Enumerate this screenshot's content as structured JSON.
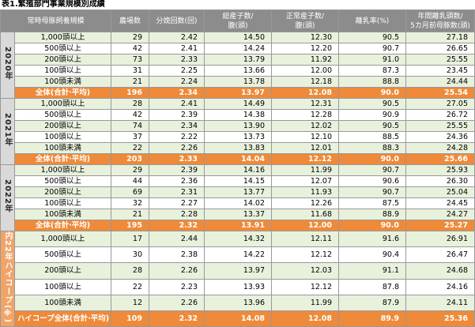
{
  "title": "表1.繁殖部門事業規模別成績",
  "table": {
    "header": [
      [
        "常時母豚飼養規模"
      ],
      [
        "農場数"
      ],
      [
        "分娩回数(回)"
      ],
      [
        "総産子数/",
        "腹(頭)"
      ],
      [
        "正常産子数/",
        "腹(頭)"
      ],
      [
        "離乳率(%)"
      ],
      [
        "年間離乳頭数/",
        "5カ月前母豚数(頭)"
      ]
    ],
    "groups": [
      {
        "label": "2020年",
        "rows": [
          [
            "1,000頭以上",
            "29",
            "2.42",
            "14.50",
            "12.30",
            "90.5",
            "27.18"
          ],
          [
            "500頭以上",
            "42",
            "2.41",
            "14.24",
            "12.20",
            "90.7",
            "26.65"
          ],
          [
            "200頭以上",
            "73",
            "2.33",
            "13.79",
            "11.92",
            "91.0",
            "25.55"
          ],
          [
            "100頭以上",
            "31",
            "2.25",
            "13.66",
            "12.00",
            "87.3",
            "23.45"
          ],
          [
            "100頭未満",
            "21",
            "2.24",
            "13.78",
            "12.18",
            "88.8",
            "24.44"
          ],
          [
            "全体(合計·平均)",
            "196",
            "2.34",
            "13.97",
            "12.08",
            "90.0",
            "25.54"
          ]
        ]
      },
      {
        "label": "2021年",
        "rows": [
          [
            "1,000頭以上",
            "28",
            "2.41",
            "14.49",
            "12.31",
            "90.5",
            "27.05"
          ],
          [
            "500頭以上",
            "42",
            "2.39",
            "14.38",
            "12.28",
            "90.9",
            "26.72"
          ],
          [
            "200頭以上",
            "74",
            "2.34",
            "13.90",
            "12.02",
            "90.5",
            "25.55"
          ],
          [
            "100頭以上",
            "37",
            "2.22",
            "13.73",
            "12.10",
            "88.5",
            "24.36"
          ],
          [
            "100頭未満",
            "22",
            "2.26",
            "13.83",
            "12.01",
            "88.3",
            "24.28"
          ],
          [
            "全体(合計·平均)",
            "203",
            "2.33",
            "14.04",
            "12.12",
            "90.0",
            "25.66"
          ]
        ]
      },
      {
        "label": "2022年",
        "rows": [
          [
            "1,000頭以上",
            "29",
            "2.39",
            "14.16",
            "11.99",
            "90.7",
            "25.93"
          ],
          [
            "500頭以上",
            "44",
            "2.36",
            "14.15",
            "12.07",
            "90.6",
            "26.30"
          ],
          [
            "200頭以上",
            "69",
            "2.31",
            "13.77",
            "11.93",
            "90.7",
            "25.04"
          ],
          [
            "100頭以上",
            "32",
            "2.27",
            "14.02",
            "12.26",
            "87.5",
            "24.45"
          ],
          [
            "100頭未満",
            "21",
            "2.28",
            "13.37",
            "11.68",
            "88.9",
            "24.27"
          ],
          [
            "全体(合計·平均)",
            "195",
            "2.32",
            "13.91",
            "12.00",
            "90.0",
            "25.27"
          ]
        ]
      },
      {
        "label": "内22年ハイコープ(※)",
        "rows": [
          [
            "1,000頭以上",
            "17",
            "2.44",
            "14.32",
            "12.11",
            "91.6",
            "26.91"
          ],
          [
            "500頭以上",
            "30",
            "2.38",
            "14.22",
            "12.12",
            "90.4",
            "26.47"
          ],
          [
            "200頭以上",
            "28",
            "2.26",
            "13.97",
            "12.03",
            "91.1",
            "24.68"
          ],
          [
            "100頭以上",
            "22",
            "2.23",
            "13.93",
            "12.12",
            "87.8",
            "24.16"
          ],
          [
            "100頭未満",
            "12",
            "2.26",
            "13.96",
            "11.99",
            "87.9",
            "24.11"
          ],
          [
            "ハイコープ全体(合計·平均)",
            "109",
            "2.32",
            "14.08",
            "12.08",
            "89.9",
            "25.36"
          ]
        ]
      }
    ]
  }
}
